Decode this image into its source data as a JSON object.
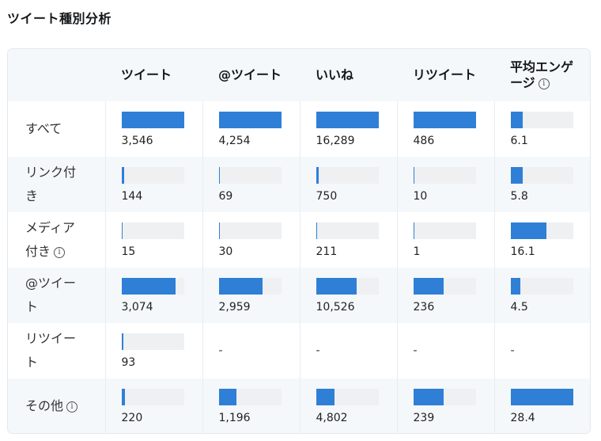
{
  "title": "ツイート種別分析",
  "columns": [
    "ツイート",
    "@ツイート",
    "いいね",
    "リツイート",
    "平均エンゲージ"
  ],
  "fill_color": "#2f7fd6",
  "track_color": "#eef0f2",
  "rows": [
    {
      "label": "すべて",
      "info": false,
      "cells": [
        {
          "value": "3,546",
          "bar": 1.0
        },
        {
          "value": "4,254",
          "bar": 1.0
        },
        {
          "value": "16,289",
          "bar": 1.0
        },
        {
          "value": "486",
          "bar": 1.0
        },
        {
          "value": "6.1",
          "bar": 0.2
        }
      ]
    },
    {
      "label": "リンク付き",
      "info": false,
      "cells": [
        {
          "value": "144",
          "bar": 0.04
        },
        {
          "value": "69",
          "bar": 0.02
        },
        {
          "value": "750",
          "bar": 0.05
        },
        {
          "value": "10",
          "bar": 0.02
        },
        {
          "value": "5.8",
          "bar": 0.2
        }
      ]
    },
    {
      "label": "メディア付き",
      "info": true,
      "cells": [
        {
          "value": "15",
          "bar": 0.01
        },
        {
          "value": "30",
          "bar": 0.01
        },
        {
          "value": "211",
          "bar": 0.01
        },
        {
          "value": "1",
          "bar": 0.01
        },
        {
          "value": "16.1",
          "bar": 0.57
        }
      ]
    },
    {
      "label": "@ツイート",
      "info": false,
      "cells": [
        {
          "value": "3,074",
          "bar": 0.87
        },
        {
          "value": "2,959",
          "bar": 0.7
        },
        {
          "value": "10,526",
          "bar": 0.65
        },
        {
          "value": "236",
          "bar": 0.49
        },
        {
          "value": "4.5",
          "bar": 0.16
        }
      ]
    },
    {
      "label": "リツイート",
      "info": false,
      "cells": [
        {
          "value": "93",
          "bar": 0.03
        },
        {
          "value": "-",
          "bar": null
        },
        {
          "value": "-",
          "bar": null
        },
        {
          "value": "-",
          "bar": null
        },
        {
          "value": "-",
          "bar": null
        }
      ]
    },
    {
      "label": "その他",
      "info": true,
      "cells": [
        {
          "value": "220",
          "bar": 0.06
        },
        {
          "value": "1,196",
          "bar": 0.28
        },
        {
          "value": "4,802",
          "bar": 0.3
        },
        {
          "value": "239",
          "bar": 0.49
        },
        {
          "value": "28.4",
          "bar": 1.0
        }
      ]
    }
  ],
  "info_glyph": "i"
}
